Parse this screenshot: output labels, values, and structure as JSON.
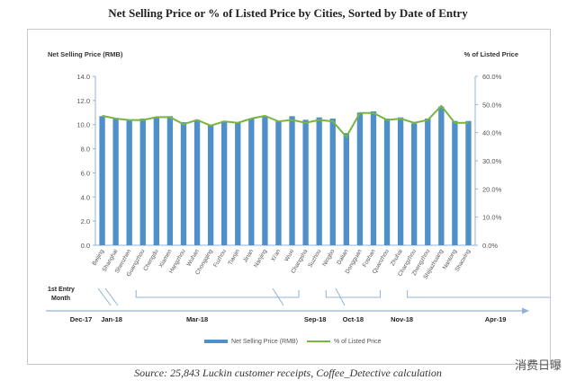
{
  "title": "Net Selling Price or % of Listed Price by Cities, Sorted by Date of Entry",
  "source": "Source: 25,843 Luckin customer receipts, Coffee_Detective calculation",
  "watermark": "消费日曝",
  "timeline": {
    "label_line1": "1st Entry",
    "label_line2": "Month",
    "months": [
      {
        "label": "Dec-17",
        "start": 0,
        "end": 0
      },
      {
        "label": "Jan-18",
        "start": 1,
        "end": 2
      },
      {
        "label": "Mar-18",
        "start": 2,
        "end": 15
      },
      {
        "label": "Sep-18",
        "start": 16,
        "end": 16
      },
      {
        "label": "Oct-18",
        "start": 17,
        "end": 21
      },
      {
        "label": "Nov-18",
        "start": 22,
        "end": 22
      },
      {
        "label": "Apr-19",
        "start": 23,
        "end": 36
      }
    ]
  },
  "colors": {
    "bar": "#4f90c8",
    "line": "#78b542",
    "axis": "#8fb3d6",
    "text": "#555555"
  },
  "chart_data": {
    "type": "bar",
    "title": "Net Selling Price or % of Listed Price by Cities, Sorted by Date of Entry",
    "ylabel": "Net Selling Price (RMB)",
    "y2label": "% of Listed Price",
    "ylim": [
      0,
      14
    ],
    "yticks": [
      "0.0",
      "2.0",
      "4.0",
      "6.0",
      "8.0",
      "10.0",
      "12.0",
      "14.0"
    ],
    "y2lim": [
      0,
      60
    ],
    "y2ticks": [
      "0.0%",
      "10.0%",
      "20.0%",
      "30.0%",
      "40.0%",
      "50.0%",
      "60.0%"
    ],
    "categories": [
      "Beijing",
      "Shanghai",
      "Shenzhen",
      "Guangzhou",
      "Chengdu",
      "Xiamen",
      "Hangzhou",
      "Wuhan",
      "Chongqing",
      "Fuzhou",
      "Tianjin",
      "Jinan",
      "Nanjing",
      "Xi'an",
      "Wuxi",
      "Changsha",
      "Suzhou",
      "Ningbo",
      "Dalian",
      "Dongguan",
      "Foshan",
      "Quanzhou",
      "Zhuhai",
      "Changzhou",
      "Zhengzhou",
      "Shijiazhuang",
      "Nantong",
      "Shaoxing"
    ],
    "series": [
      {
        "name": "Net Selling Price (RMB)",
        "type": "bar",
        "axis": "left",
        "values": [
          10.7,
          10.5,
          10.4,
          10.5,
          10.6,
          10.7,
          10.2,
          10.4,
          10.0,
          10.3,
          10.2,
          10.5,
          10.7,
          10.3,
          10.7,
          10.4,
          10.6,
          10.5,
          9.3,
          11.0,
          11.1,
          10.5,
          10.6,
          10.1,
          10.5,
          11.5,
          10.3,
          10.3
        ]
      },
      {
        "name": "% of Listed Price",
        "type": "line",
        "axis": "right",
        "values": [
          46.0,
          45.0,
          44.5,
          44.5,
          45.5,
          45.5,
          43.0,
          44.5,
          42.5,
          44.0,
          43.5,
          45.0,
          46.0,
          44.0,
          44.5,
          43.5,
          44.5,
          44.0,
          38.5,
          47.0,
          47.0,
          44.5,
          45.0,
          43.5,
          44.5,
          49.5,
          43.5,
          43.5
        ]
      }
    ],
    "legend": "bottom-center",
    "grid": false
  }
}
